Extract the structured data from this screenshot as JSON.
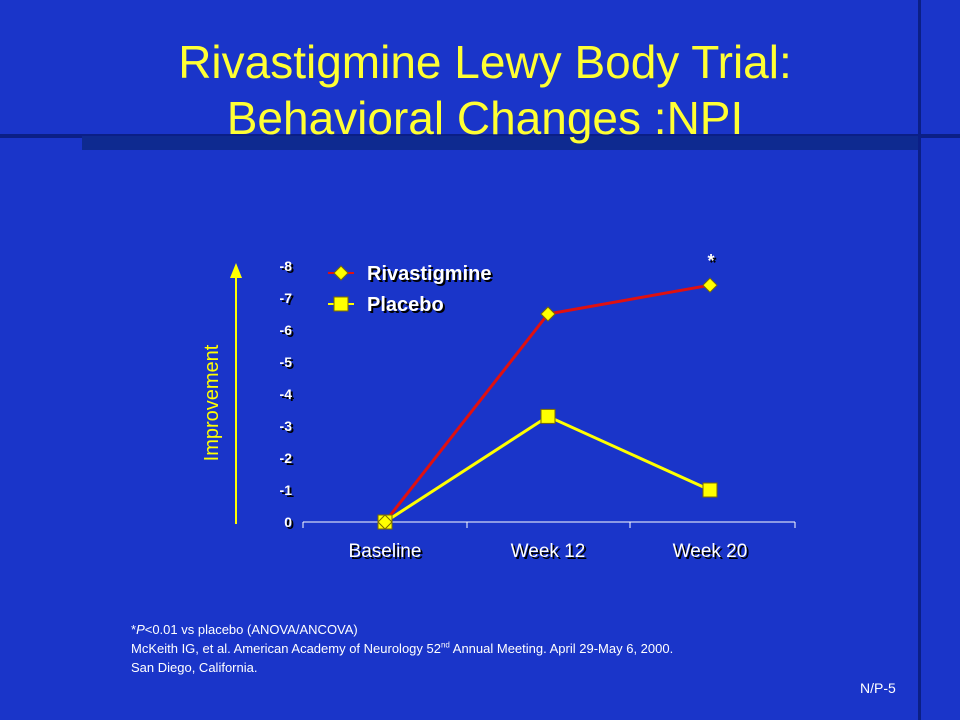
{
  "slide": {
    "title_line1": "Rivastigmine Lewy Body Trial:",
    "title_line2": "Behavioral Changes :NPI",
    "footnote_sig_prefix": "*",
    "footnote_sig_p": "P",
    "footnote_sig_rest": "<0.01 vs placebo (ANOVA/ANCOVA)",
    "citation_part1": "McKeith IG, et al. American Academy of Neurology 52",
    "citation_sup": "nd",
    "citation_part2": " Annual Meeting. April 29-May 6, 2000.",
    "citation_line2": "San Diego, California.",
    "slide_number": "N/P-5"
  },
  "chart_data": {
    "type": "line",
    "categories": [
      "Baseline",
      "Week 12",
      "Week 20"
    ],
    "series": [
      {
        "name": "Rivastigmine",
        "values": [
          0,
          -6.5,
          -7.4
        ],
        "color": "#e01010",
        "marker": "diamond",
        "marker_color": "#ffff00"
      },
      {
        "name": "Placebo",
        "values": [
          0,
          -3.3,
          -1.0
        ],
        "color": "#ffff00",
        "marker": "square",
        "marker_color": "#ffff00"
      }
    ],
    "ylim": [
      0,
      -8
    ],
    "yticks": [
      "-8",
      "-7",
      "-6",
      "-5",
      "-4",
      "-3",
      "-2",
      "-1",
      "0"
    ],
    "ylabel": "Improvement",
    "ylabel_color": "#ffff00",
    "annotations": [
      {
        "text": "*",
        "category": "Week 20"
      }
    ],
    "legend_position": "top-left",
    "grid": false
  }
}
